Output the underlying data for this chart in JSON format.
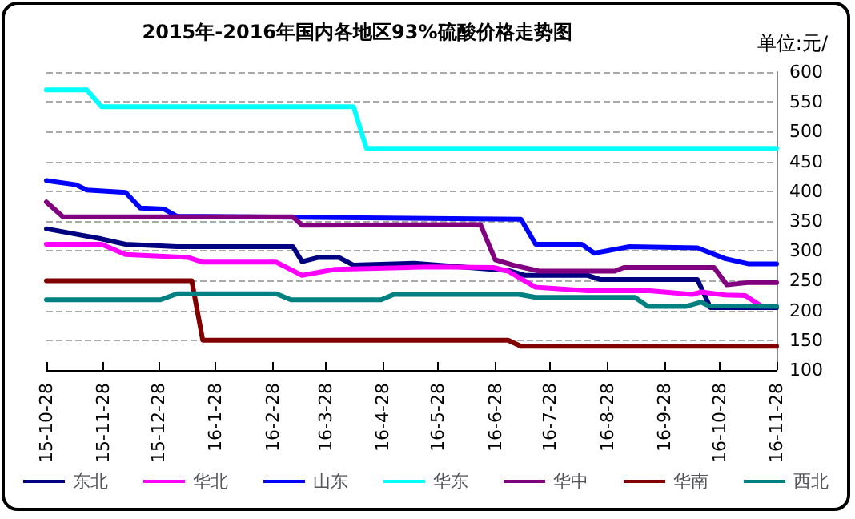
{
  "chart_data": {
    "type": "line",
    "title": "2015年-2016年国内各地区93%硫酸价格走势图",
    "ylabel": "单位:元/",
    "ylim": [
      100,
      600
    ],
    "yticks": [
      100,
      150,
      200,
      250,
      300,
      350,
      400,
      450,
      500,
      550,
      600
    ],
    "xlim": [
      "2015-10-28",
      "2016-11-28"
    ],
    "xticks": [
      {
        "value": "2015-10-28",
        "label": "15-10-28"
      },
      {
        "value": "2015-11-28",
        "label": "15-11-28"
      },
      {
        "value": "2015-12-28",
        "label": "15-12-28"
      },
      {
        "value": "2016-01-28",
        "label": "16-1-28"
      },
      {
        "value": "2016-02-28",
        "label": "16-2-28"
      },
      {
        "value": "2016-03-28",
        "label": "16-3-28"
      },
      {
        "value": "2016-04-28",
        "label": "16-4-28"
      },
      {
        "value": "2016-05-28",
        "label": "16-5-28"
      },
      {
        "value": "2016-06-28",
        "label": "16-6-28"
      },
      {
        "value": "2016-07-28",
        "label": "16-7-28"
      },
      {
        "value": "2016-08-28",
        "label": "16-8-28"
      },
      {
        "value": "2016-09-28",
        "label": "16-9-28"
      },
      {
        "value": "2016-10-28",
        "label": "16-10-28"
      },
      {
        "value": "2016-11-28",
        "label": "16-11-28"
      }
    ],
    "grid": "y",
    "legend": "bottom",
    "marker": "none",
    "line_style": "solid",
    "series": [
      {
        "name": "东北",
        "color": "#000080",
        "x": [
          "2015-10-28",
          "2015-11-13",
          "2015-11-27",
          "2015-12-10",
          "2016-01-07",
          "2016-03-10",
          "2016-03-15",
          "2016-03-24",
          "2016-04-04",
          "2016-04-12",
          "2016-05-15",
          "2016-07-05",
          "2016-07-14",
          "2016-08-17",
          "2016-08-24",
          "2016-10-16",
          "2016-10-23",
          "2016-11-28"
        ],
        "values": [
          337,
          328,
          320,
          311,
          307,
          307,
          282,
          289,
          289,
          276,
          279,
          267,
          259,
          259,
          252,
          252,
          205,
          205
        ]
      },
      {
        "name": "华北",
        "color": "#ff00ff",
        "x": [
          "2015-10-28",
          "2015-11-27",
          "2015-12-10",
          "2016-01-13",
          "2016-01-21",
          "2016-03-01",
          "2016-03-15",
          "2016-04-02",
          "2016-05-23",
          "2016-06-27",
          "2016-07-05",
          "2016-07-20",
          "2016-08-17",
          "2016-09-20",
          "2016-10-13",
          "2016-10-18",
          "2016-10-31",
          "2016-11-11",
          "2016-11-19"
        ],
        "values": [
          311,
          311,
          294,
          289,
          281,
          281,
          259,
          269,
          273,
          272,
          266,
          239,
          233,
          233,
          227,
          231,
          226,
          225,
          209
        ]
      },
      {
        "name": "山东",
        "color": "#0000ff",
        "x": [
          "2015-10-28",
          "2015-11-13",
          "2015-11-19",
          "2015-12-10",
          "2015-12-18",
          "2015-12-31",
          "2016-01-07",
          "2016-07-12",
          "2016-07-20",
          "2016-08-14",
          "2016-08-21",
          "2016-09-09",
          "2016-10-16",
          "2016-10-31",
          "2016-11-13",
          "2016-11-28"
        ],
        "values": [
          418,
          411,
          402,
          398,
          372,
          370,
          358,
          353,
          311,
          311,
          296,
          307,
          305,
          287,
          278,
          278
        ]
      },
      {
        "name": "华东",
        "color": "#00ffff",
        "x": [
          "2015-10-28",
          "2015-11-19",
          "2015-11-27",
          "2016-04-12",
          "2016-04-19",
          "2016-11-28"
        ],
        "values": [
          570,
          570,
          542,
          542,
          472,
          472
        ]
      },
      {
        "name": "华中",
        "color": "#800080",
        "x": [
          "2015-10-28",
          "2015-11-06",
          "2016-03-10",
          "2016-03-15",
          "2016-06-20",
          "2016-06-28",
          "2016-07-08",
          "2016-07-22",
          "2016-09-01",
          "2016-09-06",
          "2016-10-25",
          "2016-11-01",
          "2016-11-13",
          "2016-11-28"
        ],
        "values": [
          382,
          357,
          357,
          343,
          344,
          285,
          276,
          266,
          266,
          272,
          272,
          243,
          247,
          247
        ]
      },
      {
        "name": "华南",
        "color": "#800000",
        "x": [
          "2015-10-28",
          "2016-01-15",
          "2016-01-21",
          "2016-07-05",
          "2016-07-12",
          "2016-11-28"
        ],
        "values": [
          250,
          250,
          150,
          150,
          140,
          140
        ]
      },
      {
        "name": "西北",
        "color": "#008080",
        "x": [
          "2015-10-28",
          "2015-12-29",
          "2016-01-07",
          "2016-03-01",
          "2016-03-09",
          "2016-04-27",
          "2016-05-04",
          "2016-07-11",
          "2016-07-20",
          "2016-09-12",
          "2016-09-19",
          "2016-10-10",
          "2016-10-18",
          "2016-10-22",
          "2016-11-28"
        ],
        "values": [
          218,
          218,
          228,
          228,
          218,
          218,
          227,
          227,
          222,
          222,
          207,
          207,
          214,
          208,
          207
        ]
      }
    ]
  }
}
